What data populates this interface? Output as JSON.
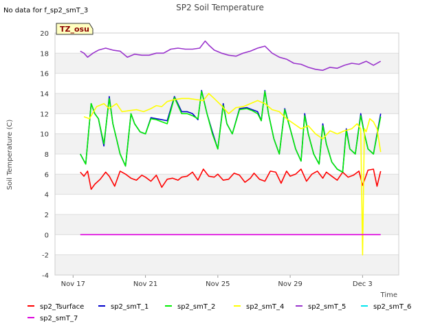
{
  "no_data_note": "No data for f_sp2_smT_3",
  "tz_label": "TZ_osu",
  "chart_data": {
    "type": "line",
    "title": "SP2 Soil Temperature",
    "xlabel": "Time",
    "ylabel": "Soil Temperature (C)",
    "xlim": [
      "Nov 16",
      "Dec 5"
    ],
    "ylim": [
      -4,
      20
    ],
    "x_ticks": [
      "Nov 17",
      "Nov 21",
      "Nov 25",
      "Nov 29",
      "Dec 3"
    ],
    "x_tick_days": [
      1,
      5,
      9,
      13,
      17
    ],
    "y_ticks": [
      "-4",
      "-2",
      "0",
      "2",
      "4",
      "6",
      "8",
      "10",
      "12",
      "14",
      "16",
      "18",
      "20"
    ],
    "y_tick_values": [
      -4,
      -2,
      0,
      2,
      4,
      6,
      8,
      10,
      12,
      14,
      16,
      18,
      20
    ],
    "grid": true,
    "legend_position": "bottom",
    "series": [
      {
        "name": "sp2_Tsurface",
        "color": "#ff0000",
        "x": [
          1.4,
          1.6,
          1.8,
          2.0,
          2.2,
          2.5,
          2.8,
          3.0,
          3.3,
          3.6,
          3.9,
          4.2,
          4.5,
          4.8,
          5.0,
          5.3,
          5.6,
          5.9,
          6.2,
          6.5,
          6.8,
          7.0,
          7.3,
          7.6,
          7.9,
          8.2,
          8.5,
          8.8,
          9.0,
          9.3,
          9.6,
          9.9,
          10.2,
          10.5,
          10.8,
          11.0,
          11.3,
          11.6,
          11.9,
          12.2,
          12.5,
          12.8,
          13.0,
          13.3,
          13.6,
          13.9,
          14.2,
          14.5,
          14.8,
          15.0,
          15.3,
          15.6,
          15.9,
          16.2,
          16.5,
          16.8,
          17.0,
          17.3,
          17.6,
          17.8,
          18.0
        ],
        "y": [
          6.2,
          5.8,
          6.3,
          4.5,
          5.0,
          5.5,
          6.2,
          5.8,
          4.8,
          6.3,
          6.0,
          5.6,
          5.4,
          5.9,
          5.7,
          5.3,
          5.9,
          4.7,
          5.5,
          5.6,
          5.4,
          5.7,
          5.8,
          6.2,
          5.4,
          6.5,
          5.8,
          5.7,
          6.0,
          5.4,
          5.5,
          6.1,
          5.9,
          5.2,
          5.6,
          6.1,
          5.5,
          5.3,
          6.3,
          6.2,
          5.1,
          6.3,
          5.8,
          6.0,
          6.5,
          5.3,
          6.0,
          6.3,
          5.6,
          6.2,
          5.8,
          5.4,
          6.2,
          5.7,
          5.9,
          6.3,
          4.9,
          6.4,
          6.5,
          4.8,
          6.3
        ]
      },
      {
        "name": "sp2_smT_1",
        "color": "#0000cc",
        "x": [
          1.4,
          1.7,
          2.0,
          2.2,
          2.4,
          2.7,
          3.0,
          3.2,
          3.4,
          3.6,
          3.9,
          4.2,
          4.4,
          4.7,
          5.0,
          5.3,
          5.6,
          5.9,
          6.2,
          6.6,
          7.0,
          7.3,
          7.6,
          7.9,
          8.1,
          8.4,
          8.7,
          9.0,
          9.3,
          9.5,
          9.8,
          10.2,
          10.6,
          10.9,
          11.2,
          11.4,
          11.6,
          11.8,
          12.1,
          12.4,
          12.7,
          13.0,
          13.3,
          13.6,
          13.8,
          14.0,
          14.3,
          14.6,
          14.8,
          15.0,
          15.3,
          15.6,
          15.9,
          16.1,
          16.3,
          16.6,
          16.9,
          17.1,
          17.3,
          17.6,
          18.0
        ],
        "y": [
          8.0,
          7.0,
          13.0,
          12.0,
          11.5,
          8.8,
          13.7,
          11.0,
          9.5,
          8.0,
          6.8,
          12.0,
          11.0,
          10.2,
          10.0,
          11.6,
          11.5,
          11.4,
          11.3,
          13.7,
          12.2,
          12.2,
          12.0,
          11.4,
          14.3,
          12.0,
          10.2,
          8.5,
          13.0,
          11.0,
          10.0,
          12.5,
          12.6,
          12.4,
          12.2,
          11.3,
          14.3,
          12.0,
          9.5,
          8.0,
          12.5,
          10.5,
          8.5,
          7.3,
          12.0,
          10.0,
          8.0,
          7.0,
          11.0,
          9.0,
          7.2,
          6.5,
          6.2,
          10.5,
          8.5,
          8.0,
          12.0,
          10.0,
          8.5,
          8.0,
          12.0
        ]
      },
      {
        "name": "sp2_smT_2",
        "color": "#00ee00",
        "x": [
          1.4,
          1.7,
          2.0,
          2.2,
          2.4,
          2.7,
          3.0,
          3.2,
          3.4,
          3.6,
          3.9,
          4.2,
          4.4,
          4.7,
          5.0,
          5.3,
          5.6,
          5.9,
          6.2,
          6.6,
          7.0,
          7.3,
          7.6,
          7.9,
          8.1,
          8.4,
          8.7,
          9.0,
          9.3,
          9.5,
          9.8,
          10.2,
          10.6,
          10.9,
          11.2,
          11.4,
          11.6,
          11.8,
          12.1,
          12.4,
          12.7,
          13.0,
          13.3,
          13.6,
          13.8,
          14.0,
          14.3,
          14.6,
          14.8,
          15.0,
          15.3,
          15.6,
          15.9,
          16.1,
          16.3,
          16.6,
          16.9,
          17.1,
          17.3,
          17.6,
          18.0
        ],
        "y": [
          8.0,
          7.0,
          13.0,
          12.0,
          11.5,
          9.0,
          13.5,
          11.0,
          9.5,
          8.0,
          6.8,
          12.0,
          11.0,
          10.2,
          10.0,
          11.5,
          11.4,
          11.2,
          11.0,
          13.6,
          12.0,
          12.0,
          11.8,
          11.5,
          14.2,
          12.0,
          10.0,
          8.5,
          12.8,
          11.0,
          10.0,
          12.4,
          12.5,
          12.3,
          12.0,
          11.3,
          14.2,
          12.0,
          9.5,
          8.0,
          12.4,
          10.5,
          8.5,
          7.3,
          11.8,
          10.0,
          8.0,
          7.0,
          10.8,
          9.0,
          7.2,
          6.5,
          6.2,
          10.3,
          8.5,
          8.0,
          11.8,
          10.0,
          8.5,
          8.0,
          11.7
        ]
      },
      {
        "name": "sp2_smT_4",
        "color": "#ffff00",
        "x": [
          1.6,
          1.9,
          2.3,
          2.7,
          3.0,
          3.4,
          3.7,
          4.1,
          4.5,
          4.9,
          5.3,
          5.6,
          5.9,
          6.2,
          6.6,
          7.0,
          7.4,
          7.8,
          8.2,
          8.5,
          8.8,
          9.2,
          9.6,
          10.0,
          10.4,
          10.8,
          11.2,
          11.6,
          12.0,
          12.4,
          12.8,
          13.2,
          13.6,
          14.0,
          14.4,
          14.8,
          15.2,
          15.6,
          16.0,
          16.4,
          16.7,
          16.9,
          17.0,
          17.1,
          17.2,
          17.4,
          17.6,
          17.8,
          18.0
        ],
        "y": [
          11.7,
          11.5,
          12.7,
          13.0,
          12.5,
          13.0,
          12.2,
          12.3,
          12.4,
          12.2,
          12.5,
          12.8,
          12.7,
          13.2,
          13.4,
          13.5,
          13.5,
          13.4,
          13.3,
          14.0,
          13.5,
          12.8,
          12.0,
          12.6,
          12.7,
          13.0,
          13.3,
          13.0,
          12.4,
          12.2,
          11.5,
          11.0,
          10.5,
          10.8,
          10.0,
          9.5,
          10.3,
          10.0,
          10.3,
          10.5,
          11.0,
          10.5,
          -2.0,
          10.5,
          10.2,
          11.5,
          11.2,
          10.5,
          8.2
        ]
      },
      {
        "name": "sp2_smT_5",
        "color": "#9933cc",
        "x": [
          1.4,
          1.6,
          1.8,
          2.1,
          2.4,
          2.8,
          3.2,
          3.6,
          4.0,
          4.4,
          4.8,
          5.2,
          5.6,
          6.0,
          6.4,
          6.8,
          7.2,
          7.6,
          8.0,
          8.3,
          8.5,
          8.8,
          9.2,
          9.6,
          10.0,
          10.4,
          10.8,
          11.2,
          11.6,
          12.0,
          12.4,
          12.8,
          13.2,
          13.6,
          14.0,
          14.4,
          14.8,
          15.2,
          15.6,
          16.0,
          16.4,
          16.8,
          17.2,
          17.6,
          18.0
        ],
        "y": [
          18.2,
          18.0,
          17.6,
          18.0,
          18.3,
          18.5,
          18.3,
          18.2,
          17.6,
          17.9,
          17.8,
          17.8,
          18.0,
          18.0,
          18.4,
          18.5,
          18.4,
          18.4,
          18.5,
          19.2,
          18.8,
          18.3,
          18.0,
          17.8,
          17.7,
          18.0,
          18.2,
          18.5,
          18.7,
          18.0,
          17.6,
          17.4,
          17.0,
          16.9,
          16.6,
          16.4,
          16.3,
          16.6,
          16.5,
          16.8,
          17.0,
          16.9,
          17.2,
          16.8,
          17.2
        ]
      },
      {
        "name": "sp2_smT_6",
        "color": "#00e5ee",
        "x": [],
        "y": []
      },
      {
        "name": "sp2_smT_7",
        "color": "#dd00dd",
        "x": [
          1.4,
          18.0
        ],
        "y": [
          0.0,
          0.0
        ]
      }
    ]
  }
}
